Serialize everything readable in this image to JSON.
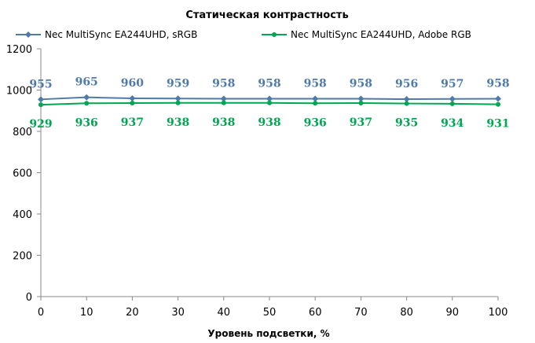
{
  "chart_data": {
    "type": "line",
    "title": "Статическая контрастность",
    "xlabel": "Уровень подсветки, %",
    "ylabel": "",
    "x": [
      0,
      10,
      20,
      30,
      40,
      50,
      60,
      70,
      80,
      90,
      100
    ],
    "xlim": [
      0,
      100
    ],
    "ylim": [
      0,
      1200
    ],
    "yticks": [
      0,
      200,
      400,
      600,
      800,
      1000,
      1200
    ],
    "grid": false,
    "legend": "top",
    "series": [
      {
        "name": "Nec MultiSync EA244UHD, sRGB",
        "color": "#4f7aaa",
        "marker": "diamond",
        "label_position": "above",
        "values": [
          955,
          965,
          960,
          959,
          958,
          958,
          958,
          958,
          956,
          957,
          958
        ]
      },
      {
        "name": "Nec MultiSync EA244UHD, Adobe RGB",
        "color": "#00a651",
        "marker": "circle",
        "label_position": "below",
        "values": [
          929,
          936,
          937,
          938,
          938,
          938,
          936,
          937,
          935,
          934,
          931
        ]
      }
    ]
  }
}
